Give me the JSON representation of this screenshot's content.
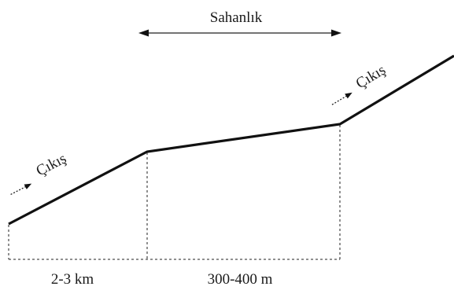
{
  "labels": {
    "landing": "Sahanlık",
    "exit_left": "Çıkış",
    "exit_right": "Çıkış",
    "dist_left": "2-3 km",
    "dist_right": "300-400 m"
  }
}
